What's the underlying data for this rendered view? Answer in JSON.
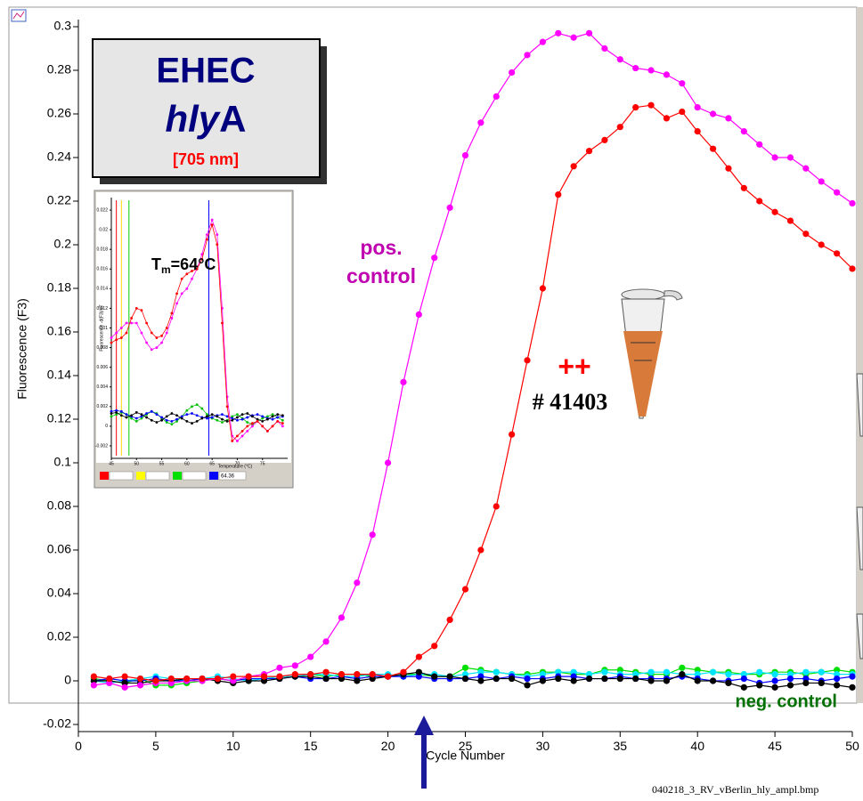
{
  "chart_data": [
    {
      "type": "line",
      "xlabel": "Cycle Number",
      "ylabel": "Fluorescence (F3)",
      "title": "EHEC",
      "title_parts": [
        "hly",
        "A"
      ],
      "subtitle": "[705 nm]",
      "pos_label": [
        "pos.",
        "control"
      ],
      "neg_label": "neg. control",
      "sample_label": "# 41403",
      "sample_mark": "++",
      "x": [
        1,
        2,
        3,
        4,
        5,
        6,
        7,
        8,
        9,
        10,
        11,
        12,
        13,
        14,
        15,
        16,
        17,
        18,
        19,
        20,
        21,
        22,
        23,
        24,
        25,
        26,
        27,
        28,
        29,
        30,
        31,
        32,
        33,
        34,
        35,
        36,
        37,
        38,
        39,
        40,
        41,
        42,
        43,
        44,
        45,
        46,
        47,
        48,
        49,
        50
      ],
      "xlim": [
        0,
        50
      ],
      "xticks": [
        0,
        5,
        10,
        15,
        20,
        25,
        30,
        35,
        40,
        45,
        50
      ],
      "ylim": [
        -0.02,
        0.3
      ],
      "yticks": [
        -0.02,
        0,
        0.02,
        0.04,
        0.06,
        0.08,
        0.1,
        0.12,
        0.14,
        0.16,
        0.18,
        0.2,
        0.22,
        0.24,
        0.26,
        0.28,
        0.3
      ],
      "grid": false,
      "series": [
        {
          "color": "#00e000",
          "values": [
            0.001,
            0,
            -0.001,
            0.001,
            -0.002,
            -0.002,
            -0.001,
            0,
            0.001,
            0,
            0.001,
            0.001,
            0.002,
            0.002,
            0.003,
            0.002,
            0.003,
            0.003,
            0.002,
            0.002,
            0.003,
            0.003,
            0.002,
            0.002,
            0.006,
            0.005,
            0.004,
            0.003,
            0.003,
            0.004,
            0.004,
            0.003,
            0.003,
            0.005,
            0.005,
            0.004,
            0.003,
            0.003,
            0.006,
            0.005,
            0.004,
            0.004,
            0.003,
            0.003,
            0.004,
            0.004,
            0.003,
            0.004,
            0.005,
            0.004
          ]
        },
        {
          "color": "#00e5ff",
          "values": [
            0,
            -0.001,
            0,
            0.001,
            0.002,
            0.001,
            0,
            0.001,
            0.002,
            0.001,
            0,
            0.001,
            0.002,
            0.002,
            0.003,
            0.003,
            0.002,
            0.002,
            0.003,
            0.003,
            0.002,
            0.003,
            0.003,
            0.002,
            0.003,
            0.004,
            0.004,
            0.003,
            0.002,
            0.003,
            0.004,
            0.004,
            0.003,
            0.004,
            0.003,
            0.003,
            0.004,
            0.004,
            0.003,
            0.003,
            0.004,
            0.003,
            0.003,
            0.004,
            0.003,
            0.003,
            0.004,
            0.004,
            0.003,
            0.003
          ]
        },
        {
          "color": "#0000ff",
          "values": [
            0,
            0.001,
            0,
            0,
            0.001,
            0,
            0,
            0.001,
            0.001,
            0,
            0.001,
            0.001,
            0.001,
            0.002,
            0.001,
            0.001,
            0.002,
            0.001,
            0.002,
            0.002,
            0.002,
            0.002,
            0.001,
            0.001,
            0.001,
            0.002,
            0.001,
            0.002,
            0.001,
            0.001,
            0.002,
            0.002,
            0.001,
            0.001,
            0.002,
            0.001,
            0.001,
            0.001,
            0.002,
            0.001,
            0,
            0,
            0.001,
            -0.001,
            0,
            0.001,
            0.001,
            0,
            0.001,
            0.002
          ]
        },
        {
          "color": "#000000",
          "values": [
            0,
            0,
            -0.001,
            -0.001,
            0,
            0,
            0.001,
            0.001,
            0,
            -0.001,
            0,
            0,
            0.001,
            0.002,
            0.002,
            0.001,
            0.001,
            0,
            0.001,
            0.002,
            0.003,
            0.004,
            0.002,
            0.002,
            0.001,
            0,
            0.001,
            0.001,
            -0.002,
            0,
            0.001,
            0,
            0.001,
            0.001,
            0.001,
            0.001,
            0,
            0,
            0.003,
            0,
            0,
            -0.001,
            -0.003,
            -0.002,
            -0.003,
            -0.002,
            -0.001,
            -0.001,
            -0.002,
            -0.003
          ]
        },
        {
          "color": "#ff00ff",
          "values": [
            -0.002,
            -0.001,
            -0.003,
            -0.002,
            -0.001,
            -0.001,
            0,
            0,
            0.001,
            0,
            0.002,
            0.003,
            0.006,
            0.007,
            0.011,
            0.018,
            0.029,
            0.045,
            0.067,
            0.1,
            0.137,
            0.168,
            0.194,
            0.217,
            0.241,
            0.256,
            0.268,
            0.279,
            0.287,
            0.293,
            0.297,
            0.295,
            0.297,
            0.29,
            0.285,
            0.281,
            0.28,
            0.278,
            0.274,
            0.263,
            0.26,
            0.258,
            0.252,
            0.246,
            0.24,
            0.24,
            0.235,
            0.229,
            0.224,
            0.219
          ]
        },
        {
          "color": "#ff0000",
          "values": [
            0.002,
            0.001,
            0.002,
            0.001,
            0,
            0.001,
            0.001,
            0.001,
            0.001,
            0.002,
            0.002,
            0.002,
            0.002,
            0.003,
            0.003,
            0.004,
            0.003,
            0.003,
            0.003,
            0.002,
            0.004,
            0.011,
            0.016,
            0.028,
            0.042,
            0.06,
            0.08,
            0.113,
            0.147,
            0.18,
            0.223,
            0.236,
            0.243,
            0.248,
            0.254,
            0.263,
            0.264,
            0.258,
            0.261,
            0.252,
            0.244,
            0.235,
            0.226,
            0.22,
            0.215,
            0.211,
            0.205,
            0.2,
            0.196,
            0.189
          ]
        }
      ]
    },
    {
      "type": "line",
      "xlabel": "Temperature (°C)",
      "ylabel": "Fluorescence -d(F3)/dT",
      "tm_label": {
        "symbol": "T",
        "subscript": "m",
        "text": "=64°C"
      },
      "x": [
        45,
        46,
        47,
        48,
        49,
        50,
        51,
        52,
        53,
        54,
        55,
        56,
        57,
        58,
        59,
        60,
        61,
        62,
        63,
        64,
        65,
        66,
        67,
        68,
        69,
        70,
        71,
        72,
        73,
        74,
        75,
        76,
        77,
        78,
        79
      ],
      "xlim": [
        45,
        80
      ],
      "xticks": [
        45,
        50,
        55,
        60,
        65,
        70,
        75
      ],
      "ylim": [
        -0.003,
        0.023
      ],
      "yticks": [
        -0.002,
        0,
        0.002,
        0.004,
        0.006,
        0.008,
        0.01,
        0.012,
        0.014,
        0.016,
        0.018,
        0.02,
        0.022
      ],
      "cursors": [
        {
          "color": "#ff0000",
          "value": 46
        },
        {
          "color": "#ffd800",
          "value": 47
        },
        {
          "color": "#00d000",
          "value": 48.5
        },
        {
          "color": "#0000ff",
          "value": 64.36
        }
      ],
      "series": [
        {
          "color": "#00c000",
          "values": [
            0.001,
            0.0012,
            0.0014,
            0.0012,
            0.0008,
            0.0005,
            0.0008,
            0.0012,
            0.0015,
            0.0013,
            0.0008,
            0.0004,
            0.0002,
            0.0005,
            0.001,
            0.0016,
            0.002,
            0.0022,
            0.0018,
            0.0012,
            0.0008,
            0.0006,
            0.0004,
            0.0006,
            0.001,
            0.0012,
            0.0008,
            0.0004,
            0.0002,
            0.0005,
            0.0008,
            0.001,
            0.0012,
            0.0009,
            0.0006
          ]
        },
        {
          "color": "#0000ff",
          "values": [
            0.0015,
            0.0016,
            0.0015,
            0.0012,
            0.001,
            0.0008,
            0.001,
            0.0013,
            0.0015,
            0.0012,
            0.0009,
            0.0006,
            0.0005,
            0.0007,
            0.001,
            0.0012,
            0.0013,
            0.0011,
            0.0009,
            0.0008,
            0.0009,
            0.0011,
            0.0012,
            0.001,
            0.0008,
            0.0006,
            0.0007,
            0.0009,
            0.0011,
            0.0012,
            0.001,
            0.0008,
            0.0007,
            0.0009,
            0.001
          ]
        },
        {
          "color": "#000000",
          "values": [
            0.0013,
            0.0014,
            0.0011,
            0.0009,
            0.0011,
            0.0014,
            0.0012,
            0.0009,
            0.0006,
            0.0004,
            0.0006,
            0.001,
            0.0013,
            0.0011,
            0.0008,
            0.0005,
            0.0003,
            0.0005,
            0.0008,
            0.001,
            0.0012,
            0.001,
            0.0007,
            0.0005,
            0.0006,
            0.0009,
            0.0012,
            0.0013,
            0.001,
            0.0007,
            0.0005,
            0.0007,
            0.001,
            0.0012,
            0.0011
          ]
        },
        {
          "color": "#ff00ff",
          "values": [
            0.009,
            0.0095,
            0.01,
            0.0105,
            0.0105,
            0.0105,
            0.0095,
            0.0085,
            0.0078,
            0.008,
            0.0085,
            0.0095,
            0.011,
            0.0125,
            0.0135,
            0.014,
            0.015,
            0.016,
            0.0175,
            0.0195,
            0.021,
            0.0195,
            0.012,
            0.003,
            -0.001,
            -0.0015,
            -0.001,
            -0.0005,
            0,
            0.0005,
            0,
            -0.0005,
            0,
            0.0005,
            0
          ]
        },
        {
          "color": "#ff0000",
          "values": [
            0.0085,
            0.0088,
            0.009,
            0.0095,
            0.011,
            0.012,
            0.0118,
            0.0105,
            0.0095,
            0.009,
            0.0092,
            0.01,
            0.0115,
            0.0135,
            0.015,
            0.0155,
            0.0158,
            0.016,
            0.017,
            0.019,
            0.0205,
            0.0185,
            0.0105,
            0.002,
            -0.0015,
            -0.001,
            -0.0005,
            0,
            0.0003,
            0.0005,
            0,
            -0.0005,
            0,
            0.0005,
            0.0003
          ]
        }
      ]
    }
  ],
  "caption": "040218_3_RV_vBerlin_hly_ampl.bmp"
}
